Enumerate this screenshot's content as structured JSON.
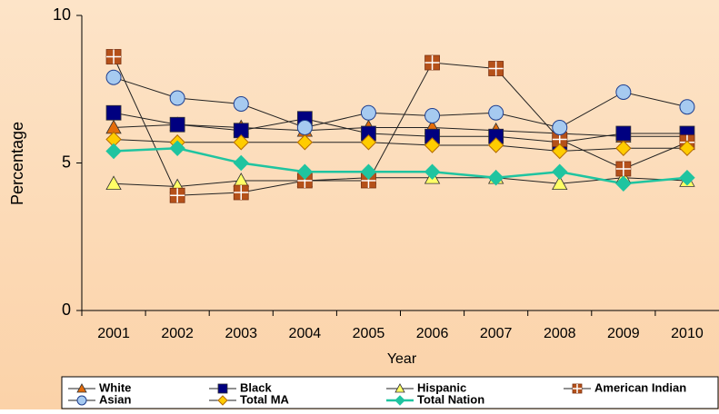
{
  "chart_data": {
    "type": "line",
    "y_label": "Percentage",
    "x_label": "Year",
    "categories": [
      "2001",
      "2002",
      "2003",
      "2004",
      "2005",
      "2006",
      "2007",
      "2008",
      "2009",
      "2010"
    ],
    "ylim": [
      0,
      10
    ],
    "yticks": [
      0,
      5,
      10
    ],
    "series": [
      {
        "name": "White",
        "color": "#e46c0a",
        "marker": "triangle",
        "values": [
          6.2,
          6.3,
          6.2,
          6.1,
          6.2,
          6.2,
          6.1,
          6.0,
          5.9,
          5.9
        ]
      },
      {
        "name": "Black",
        "color": "#000080",
        "marker": "square",
        "values": [
          6.7,
          6.3,
          6.1,
          6.5,
          6.0,
          5.9,
          5.9,
          5.7,
          6.0,
          6.0
        ]
      },
      {
        "name": "Hispanic",
        "color": "#ffff66",
        "marker": "triangle",
        "values": [
          4.3,
          4.2,
          4.4,
          4.4,
          4.5,
          4.5,
          4.5,
          4.3,
          4.5,
          4.4
        ]
      },
      {
        "name": "American Indian",
        "color": "#b5511a",
        "marker": "cross-square",
        "values": [
          8.6,
          3.9,
          4.0,
          4.4,
          4.4,
          8.4,
          8.2,
          5.8,
          4.8,
          5.7
        ]
      },
      {
        "name": "Asian",
        "color": "#a6caf0",
        "marker": "circle",
        "values": [
          7.9,
          7.2,
          7.0,
          6.2,
          6.7,
          6.6,
          6.7,
          6.2,
          7.4,
          6.9
        ]
      },
      {
        "name": "Total MA",
        "color": "#ffcc00",
        "marker": "diamond",
        "values": [
          5.8,
          5.7,
          5.7,
          5.7,
          5.7,
          5.6,
          5.6,
          5.4,
          5.5,
          5.5
        ]
      },
      {
        "name": "Total Nation",
        "color": "#1fc4a0",
        "marker": "diamond",
        "line_color": "#1fc4a0",
        "values": [
          5.4,
          5.5,
          5.0,
          4.7,
          4.7,
          4.7,
          4.5,
          4.7,
          4.3,
          4.5
        ]
      }
    ]
  }
}
